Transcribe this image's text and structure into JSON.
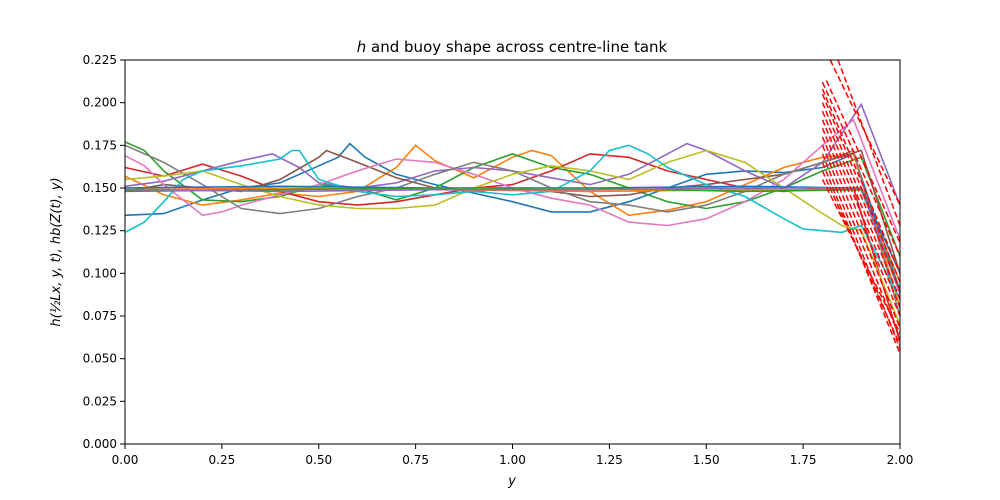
{
  "chart_data": {
    "type": "line",
    "title_parts": [
      "h",
      " and buoy shape across centre-line tank"
    ],
    "xlabel": "y",
    "ylabel": "h(½Lx, y, t), hb(Z(t), y)",
    "xlim": [
      0,
      2.0
    ],
    "ylim": [
      0,
      0.225
    ],
    "x_ticks": [
      "0.00",
      "0.25",
      "0.50",
      "0.75",
      "1.00",
      "1.25",
      "1.50",
      "1.75",
      "2.00"
    ],
    "y_ticks": [
      "0.000",
      "0.025",
      "0.050",
      "0.075",
      "0.100",
      "0.125",
      "0.150",
      "0.175",
      "0.200",
      "0.225"
    ],
    "grid": false,
    "colors": [
      "#1f77b4",
      "#ff7f0e",
      "#2ca02c",
      "#d62728",
      "#9467bd",
      "#8c564b",
      "#e377c2",
      "#7f7f7f",
      "#bcbd22",
      "#17becf"
    ],
    "series": [
      {
        "color": "#1f77b4",
        "points": [
          [
            0,
            0.134
          ],
          [
            0.1,
            0.135
          ],
          [
            0.2,
            0.143
          ],
          [
            0.3,
            0.15
          ],
          [
            0.4,
            0.153
          ],
          [
            0.5,
            0.163
          ],
          [
            0.55,
            0.168
          ],
          [
            0.58,
            0.176
          ],
          [
            0.62,
            0.168
          ],
          [
            0.7,
            0.158
          ],
          [
            0.8,
            0.152
          ],
          [
            0.9,
            0.147
          ],
          [
            1.0,
            0.142
          ],
          [
            1.1,
            0.136
          ],
          [
            1.2,
            0.136
          ],
          [
            1.3,
            0.142
          ],
          [
            1.4,
            0.15
          ],
          [
            1.5,
            0.158
          ],
          [
            1.6,
            0.16
          ],
          [
            1.7,
            0.159
          ],
          [
            1.8,
            0.162
          ],
          [
            1.88,
            0.17
          ],
          [
            2.0,
            0.09
          ]
        ]
      },
      {
        "color": "#ff7f0e",
        "points": [
          [
            0,
            0.157
          ],
          [
            0.1,
            0.146
          ],
          [
            0.2,
            0.14
          ],
          [
            0.3,
            0.143
          ],
          [
            0.4,
            0.147
          ],
          [
            0.5,
            0.145
          ],
          [
            0.6,
            0.148
          ],
          [
            0.7,
            0.162
          ],
          [
            0.75,
            0.175
          ],
          [
            0.8,
            0.166
          ],
          [
            0.9,
            0.156
          ],
          [
            1.0,
            0.168
          ],
          [
            1.05,
            0.172
          ],
          [
            1.1,
            0.169
          ],
          [
            1.2,
            0.148
          ],
          [
            1.3,
            0.134
          ],
          [
            1.4,
            0.137
          ],
          [
            1.5,
            0.142
          ],
          [
            1.6,
            0.152
          ],
          [
            1.7,
            0.162
          ],
          [
            1.8,
            0.168
          ],
          [
            1.88,
            0.17
          ],
          [
            2.0,
            0.08
          ]
        ]
      },
      {
        "color": "#2ca02c",
        "points": [
          [
            0,
            0.177
          ],
          [
            0.05,
            0.172
          ],
          [
            0.1,
            0.16
          ],
          [
            0.2,
            0.143
          ],
          [
            0.3,
            0.142
          ],
          [
            0.4,
            0.145
          ],
          [
            0.5,
            0.152
          ],
          [
            0.6,
            0.15
          ],
          [
            0.7,
            0.143
          ],
          [
            0.8,
            0.15
          ],
          [
            0.9,
            0.162
          ],
          [
            1.0,
            0.17
          ],
          [
            1.1,
            0.162
          ],
          [
            1.2,
            0.158
          ],
          [
            1.3,
            0.15
          ],
          [
            1.4,
            0.142
          ],
          [
            1.5,
            0.138
          ],
          [
            1.6,
            0.142
          ],
          [
            1.7,
            0.15
          ],
          [
            1.8,
            0.16
          ],
          [
            1.9,
            0.168
          ],
          [
            2.0,
            0.11
          ]
        ]
      },
      {
        "color": "#d62728",
        "points": [
          [
            0,
            0.162
          ],
          [
            0.1,
            0.157
          ],
          [
            0.2,
            0.164
          ],
          [
            0.3,
            0.157
          ],
          [
            0.4,
            0.148
          ],
          [
            0.5,
            0.142
          ],
          [
            0.6,
            0.14
          ],
          [
            0.7,
            0.142
          ],
          [
            0.8,
            0.146
          ],
          [
            0.9,
            0.15
          ],
          [
            1.0,
            0.152
          ],
          [
            1.1,
            0.16
          ],
          [
            1.2,
            0.17
          ],
          [
            1.3,
            0.168
          ],
          [
            1.4,
            0.16
          ],
          [
            1.5,
            0.155
          ],
          [
            1.6,
            0.15
          ],
          [
            1.7,
            0.148
          ],
          [
            1.8,
            0.15
          ],
          [
            1.88,
            0.15
          ],
          [
            2.0,
            0.06
          ]
        ]
      },
      {
        "color": "#9467bd",
        "points": [
          [
            0,
            0.151
          ],
          [
            0.1,
            0.154
          ],
          [
            0.2,
            0.16
          ],
          [
            0.3,
            0.166
          ],
          [
            0.38,
            0.17
          ],
          [
            0.45,
            0.162
          ],
          [
            0.5,
            0.153
          ],
          [
            0.6,
            0.15
          ],
          [
            0.7,
            0.153
          ],
          [
            0.8,
            0.16
          ],
          [
            0.9,
            0.162
          ],
          [
            1.0,
            0.16
          ],
          [
            1.1,
            0.156
          ],
          [
            1.2,
            0.152
          ],
          [
            1.3,
            0.158
          ],
          [
            1.4,
            0.17
          ],
          [
            1.45,
            0.176
          ],
          [
            1.5,
            0.172
          ],
          [
            1.6,
            0.16
          ],
          [
            1.7,
            0.15
          ],
          [
            1.8,
            0.165
          ],
          [
            1.9,
            0.199
          ],
          [
            2.0,
            0.14
          ]
        ]
      },
      {
        "color": "#8c564b",
        "points": [
          [
            0,
            0.148
          ],
          [
            0.1,
            0.152
          ],
          [
            0.2,
            0.15
          ],
          [
            0.3,
            0.148
          ],
          [
            0.4,
            0.155
          ],
          [
            0.5,
            0.168
          ],
          [
            0.52,
            0.172
          ],
          [
            0.6,
            0.165
          ],
          [
            0.7,
            0.156
          ],
          [
            0.8,
            0.15
          ],
          [
            0.9,
            0.148
          ],
          [
            1.0,
            0.15
          ],
          [
            1.1,
            0.148
          ],
          [
            1.2,
            0.145
          ],
          [
            1.3,
            0.146
          ],
          [
            1.4,
            0.15
          ],
          [
            1.5,
            0.152
          ],
          [
            1.6,
            0.155
          ],
          [
            1.7,
            0.158
          ],
          [
            1.8,
            0.165
          ],
          [
            1.9,
            0.172
          ],
          [
            2.0,
            0.1
          ]
        ]
      },
      {
        "color": "#e377c2",
        "points": [
          [
            0,
            0.169
          ],
          [
            0.05,
            0.163
          ],
          [
            0.1,
            0.152
          ],
          [
            0.2,
            0.134
          ],
          [
            0.25,
            0.136
          ],
          [
            0.3,
            0.14
          ],
          [
            0.4,
            0.146
          ],
          [
            0.5,
            0.152
          ],
          [
            0.6,
            0.16
          ],
          [
            0.7,
            0.167
          ],
          [
            0.8,
            0.165
          ],
          [
            0.9,
            0.158
          ],
          [
            1.0,
            0.15
          ],
          [
            1.1,
            0.144
          ],
          [
            1.2,
            0.14
          ],
          [
            1.3,
            0.13
          ],
          [
            1.4,
            0.128
          ],
          [
            1.5,
            0.132
          ],
          [
            1.6,
            0.142
          ],
          [
            1.7,
            0.155
          ],
          [
            1.8,
            0.175
          ],
          [
            1.88,
            0.19
          ],
          [
            2.0,
            0.12
          ]
        ]
      },
      {
        "color": "#7f7f7f",
        "points": [
          [
            0,
            0.175
          ],
          [
            0.1,
            0.165
          ],
          [
            0.2,
            0.152
          ],
          [
            0.3,
            0.138
          ],
          [
            0.4,
            0.135
          ],
          [
            0.5,
            0.138
          ],
          [
            0.6,
            0.145
          ],
          [
            0.7,
            0.15
          ],
          [
            0.8,
            0.158
          ],
          [
            0.9,
            0.165
          ],
          [
            1.0,
            0.16
          ],
          [
            1.1,
            0.15
          ],
          [
            1.2,
            0.142
          ],
          [
            1.3,
            0.14
          ],
          [
            1.4,
            0.136
          ],
          [
            1.5,
            0.14
          ],
          [
            1.6,
            0.148
          ],
          [
            1.7,
            0.158
          ],
          [
            1.8,
            0.165
          ],
          [
            1.88,
            0.172
          ],
          [
            2.0,
            0.075
          ]
        ]
      },
      {
        "color": "#bcbd22",
        "points": [
          [
            0,
            0.155
          ],
          [
            0.1,
            0.157
          ],
          [
            0.2,
            0.16
          ],
          [
            0.3,
            0.152
          ],
          [
            0.4,
            0.145
          ],
          [
            0.5,
            0.14
          ],
          [
            0.6,
            0.138
          ],
          [
            0.7,
            0.138
          ],
          [
            0.8,
            0.14
          ],
          [
            0.9,
            0.15
          ],
          [
            1.0,
            0.158
          ],
          [
            1.1,
            0.163
          ],
          [
            1.2,
            0.16
          ],
          [
            1.3,
            0.155
          ],
          [
            1.4,
            0.165
          ],
          [
            1.5,
            0.172
          ],
          [
            1.6,
            0.165
          ],
          [
            1.7,
            0.15
          ],
          [
            1.78,
            0.138
          ],
          [
            1.85,
            0.128
          ],
          [
            1.9,
            0.125
          ],
          [
            2.0,
            0.07
          ]
        ]
      },
      {
        "color": "#17becf",
        "points": [
          [
            0,
            0.124
          ],
          [
            0.05,
            0.13
          ],
          [
            0.1,
            0.142
          ],
          [
            0.15,
            0.155
          ],
          [
            0.2,
            0.16
          ],
          [
            0.3,
            0.163
          ],
          [
            0.4,
            0.167
          ],
          [
            0.43,
            0.172
          ],
          [
            0.45,
            0.172
          ],
          [
            0.5,
            0.155
          ],
          [
            0.6,
            0.148
          ],
          [
            0.7,
            0.145
          ],
          [
            0.8,
            0.146
          ],
          [
            0.9,
            0.148
          ],
          [
            1.0,
            0.146
          ],
          [
            1.1,
            0.148
          ],
          [
            1.2,
            0.16
          ],
          [
            1.25,
            0.172
          ],
          [
            1.3,
            0.175
          ],
          [
            1.35,
            0.17
          ],
          [
            1.4,
            0.162
          ],
          [
            1.5,
            0.152
          ],
          [
            1.6,
            0.145
          ],
          [
            1.7,
            0.132
          ],
          [
            1.75,
            0.126
          ],
          [
            1.8,
            0.125
          ],
          [
            1.85,
            0.124
          ],
          [
            1.9,
            0.128
          ],
          [
            2.0,
            0.085
          ]
        ]
      },
      {
        "color": "#1f77b4",
        "points": [
          [
            0,
            0.15
          ],
          [
            0.4,
            0.151
          ],
          [
            0.8,
            0.15
          ],
          [
            1.2,
            0.15
          ],
          [
            1.6,
            0.151
          ],
          [
            1.9,
            0.15
          ],
          [
            2.0,
            0.1
          ]
        ]
      },
      {
        "color": "#ff7f0e",
        "points": [
          [
            0,
            0.149
          ],
          [
            0.4,
            0.15
          ],
          [
            0.8,
            0.149
          ],
          [
            1.2,
            0.148
          ],
          [
            1.6,
            0.149
          ],
          [
            1.9,
            0.149
          ],
          [
            2.0,
            0.095
          ]
        ]
      },
      {
        "color": "#2ca02c",
        "points": [
          [
            0,
            0.148
          ],
          [
            0.4,
            0.149
          ],
          [
            0.8,
            0.15
          ],
          [
            1.2,
            0.15
          ],
          [
            1.6,
            0.148
          ],
          [
            1.9,
            0.149
          ],
          [
            2.0,
            0.09
          ]
        ]
      },
      {
        "color": "#9467bd",
        "points": [
          [
            0,
            0.149
          ],
          [
            0.4,
            0.148
          ],
          [
            0.8,
            0.149
          ],
          [
            1.2,
            0.149
          ],
          [
            1.6,
            0.15
          ],
          [
            1.9,
            0.15
          ],
          [
            2.0,
            0.088
          ]
        ]
      }
    ],
    "buoy_lines": [
      {
        "x1": 1.8,
        "y1": 0.212,
        "x2": 2.0,
        "y2": 0.11
      },
      {
        "x1": 1.8,
        "y1": 0.208,
        "x2": 2.0,
        "y2": 0.1
      },
      {
        "x1": 1.8,
        "y1": 0.205,
        "x2": 2.0,
        "y2": 0.095
      },
      {
        "x1": 1.8,
        "y1": 0.2,
        "x2": 2.0,
        "y2": 0.09
      },
      {
        "x1": 1.8,
        "y1": 0.195,
        "x2": 2.0,
        "y2": 0.085
      },
      {
        "x1": 1.8,
        "y1": 0.19,
        "x2": 2.0,
        "y2": 0.08
      },
      {
        "x1": 1.8,
        "y1": 0.185,
        "x2": 2.0,
        "y2": 0.075
      },
      {
        "x1": 1.8,
        "y1": 0.18,
        "x2": 2.0,
        "y2": 0.068
      },
      {
        "x1": 1.8,
        "y1": 0.175,
        "x2": 2.0,
        "y2": 0.062
      },
      {
        "x1": 1.8,
        "y1": 0.17,
        "x2": 2.0,
        "y2": 0.056
      },
      {
        "x1": 1.8,
        "y1": 0.165,
        "x2": 2.0,
        "y2": 0.053
      },
      {
        "x1": 1.8,
        "y1": 0.16,
        "x2": 2.0,
        "y2": 0.058
      },
      {
        "x1": 1.8,
        "y1": 0.155,
        "x2": 2.0,
        "y2": 0.065
      },
      {
        "x1": 1.82,
        "y1": 0.225,
        "x2": 2.0,
        "y2": 0.14
      },
      {
        "x1": 1.84,
        "y1": 0.225,
        "x2": 2.0,
        "y2": 0.128
      },
      {
        "x1": 1.81,
        "y1": 0.213,
        "x2": 2.0,
        "y2": 0.118
      }
    ]
  }
}
